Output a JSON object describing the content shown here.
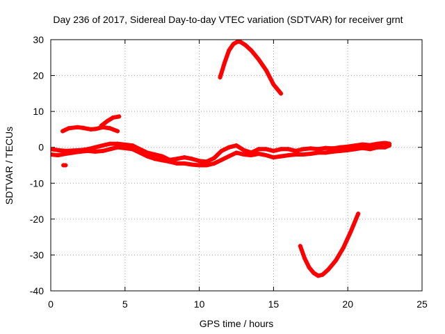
{
  "chart_data": {
    "type": "line",
    "title": "Day 236 of 2017, Sidereal Day-to-day VTEC variation (SDTVAR) for receiver grnt",
    "xlabel": "GPS time / hours",
    "ylabel": "SDTVAR / TECUs",
    "xlim": [
      0,
      25
    ],
    "ylim": [
      -40,
      30
    ],
    "xticks": [
      0,
      5,
      10,
      15,
      20,
      25
    ],
    "yticks": [
      -40,
      -30,
      -20,
      -10,
      0,
      10,
      20,
      30
    ],
    "grid": true,
    "series": [
      {
        "name": "upper-band-early",
        "x": [
          0.8,
          1.2,
          1.8,
          2.2,
          2.7,
          3.0,
          3.5,
          4.0,
          4.5
        ],
        "y": [
          4.5,
          5.3,
          5.6,
          5.4,
          5.0,
          5.1,
          5.6,
          5.3,
          4.5
        ]
      },
      {
        "name": "upper-rise-early",
        "x": [
          3.4,
          3.8,
          4.2,
          4.6
        ],
        "y": [
          6.0,
          7.3,
          8.3,
          8.6
        ]
      },
      {
        "name": "dense-band-top",
        "x": [
          0.0,
          0.5,
          1.0,
          1.5,
          2.0,
          2.5,
          3.0,
          3.5,
          4.0,
          4.5,
          5.5,
          6.0,
          6.5,
          7.0,
          7.5,
          8.0,
          8.5,
          9.0,
          9.5,
          10.0,
          10.5,
          11.0,
          11.5,
          12.0,
          12.5,
          13.0,
          13.5,
          14.0,
          14.5,
          15.0,
          15.5,
          16.0,
          16.5,
          17.0,
          17.5,
          18.0,
          18.5,
          19.0,
          19.5,
          20.0,
          20.5,
          21.0,
          21.5,
          22.0,
          22.5,
          22.8
        ],
        "y": [
          -0.5,
          -0.8,
          -1.0,
          -0.9,
          -0.8,
          -0.5,
          0.0,
          0.5,
          1.0,
          1.0,
          0.5,
          -0.5,
          -1.5,
          -2.0,
          -2.5,
          -3.5,
          -3.2,
          -2.8,
          -3.2,
          -3.8,
          -4.0,
          -3.0,
          -1.0,
          0.0,
          0.5,
          -0.8,
          -1.5,
          -0.5,
          -0.5,
          -1.0,
          -0.5,
          -0.5,
          -1.0,
          -0.5,
          -0.3,
          -0.5,
          -0.2,
          -0.3,
          0.0,
          0.2,
          0.5,
          0.8,
          0.6,
          1.0,
          1.2,
          1.0
        ]
      },
      {
        "name": "dense-band-bottom",
        "x": [
          0.0,
          0.5,
          1.0,
          1.5,
          2.0,
          2.5,
          3.0,
          3.5,
          4.0,
          4.5,
          5.5,
          6.0,
          6.5,
          7.0,
          7.5,
          8.0,
          8.5,
          9.0,
          9.5,
          10.0,
          10.5,
          11.0,
          11.5,
          12.0,
          12.5,
          13.0,
          13.5,
          14.0,
          14.5,
          15.0,
          15.5,
          16.0,
          16.5,
          17.0,
          17.5,
          18.0,
          18.5,
          19.0,
          19.5,
          20.0,
          20.5,
          21.0,
          21.5,
          22.0,
          22.5,
          22.8
        ],
        "y": [
          -2.0,
          -2.2,
          -1.8,
          -1.5,
          -1.2,
          -1.0,
          -1.2,
          -1.0,
          -0.5,
          0.0,
          -0.5,
          -1.5,
          -2.5,
          -3.2,
          -3.6,
          -4.0,
          -4.5,
          -4.5,
          -4.8,
          -5.0,
          -5.0,
          -4.5,
          -3.5,
          -2.5,
          -1.5,
          -2.0,
          -2.2,
          -1.8,
          -2.2,
          -2.8,
          -2.5,
          -2.2,
          -2.0,
          -2.0,
          -1.8,
          -1.5,
          -1.5,
          -1.2,
          -1.0,
          -0.8,
          -0.5,
          -0.2,
          -0.5,
          0.0,
          0.0,
          0.5
        ]
      },
      {
        "name": "outlier-point",
        "x": [
          0.85,
          1.0
        ],
        "y": [
          -5.0,
          -5.0
        ]
      },
      {
        "name": "arc-upper",
        "x": [
          11.4,
          11.7,
          12.0,
          12.3,
          12.6,
          12.8,
          13.1,
          13.5,
          14.0,
          14.5,
          15.0,
          15.5
        ],
        "y": [
          19.5,
          23.5,
          27.0,
          28.8,
          29.5,
          29.3,
          28.5,
          27.0,
          24.5,
          21.5,
          17.5,
          15.0
        ]
      },
      {
        "name": "arc-lower",
        "x": [
          16.8,
          17.1,
          17.4,
          17.7,
          18.0,
          18.3,
          18.7,
          19.2,
          19.7,
          20.2,
          20.7
        ],
        "y": [
          -27.5,
          -31.0,
          -33.5,
          -35.0,
          -35.8,
          -35.5,
          -34.0,
          -31.5,
          -28.0,
          -23.5,
          -18.5
        ]
      }
    ],
    "color": "#ff0000"
  }
}
